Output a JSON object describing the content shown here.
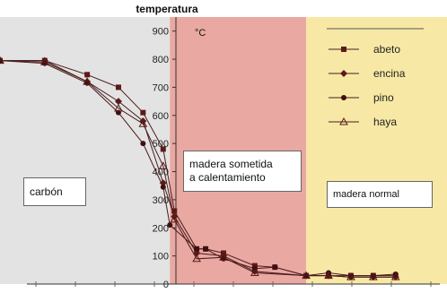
{
  "chart_data": {
    "type": "line",
    "title": "temperatura",
    "ylabel": "temperatura",
    "unit": "°C",
    "ylim": [
      0,
      950
    ],
    "yticks": [
      0,
      100,
      200,
      300,
      400,
      500,
      600,
      700,
      800,
      900
    ],
    "xlim": [
      0,
      20
    ],
    "legend_position": "top-right",
    "grid": false,
    "zones": [
      {
        "label": "carbón",
        "x_start": 0,
        "x_end": 7.6,
        "color": "#e3e3e3"
      },
      {
        "label": "madera sometida a calentamiento",
        "x_start": 7.6,
        "x_end": 13.7,
        "color": "#e9a8a1"
      },
      {
        "label": "madera normal",
        "x_start": 13.7,
        "x_end": 20,
        "color": "#f7e9a5"
      }
    ],
    "zone_labels": {
      "carbon": "carbón",
      "heated_line1": "madera sometida",
      "heated_line2": "a calentamiento",
      "normal": "madera normal"
    },
    "series": [
      {
        "name": "abeto",
        "marker": "square",
        "x": [
          0,
          2,
          3.9,
          5.3,
          6.4,
          7.3,
          7.8,
          8.8,
          9.2,
          10,
          11.4,
          12.3,
          13.7,
          14.7,
          15.7,
          16.7,
          17.7
        ],
        "y": [
          795,
          795,
          745,
          700,
          610,
          480,
          260,
          125,
          125,
          110,
          65,
          60,
          30,
          30,
          30,
          30,
          30
        ]
      },
      {
        "name": "encina",
        "marker": "diamond",
        "x": [
          0,
          2,
          3.9,
          5.3,
          6.4,
          7.3,
          7.8,
          8.8,
          10,
          11.4,
          13.7,
          14.7,
          15.7,
          16.7,
          17.7
        ],
        "y": [
          795,
          795,
          720,
          650,
          580,
          360,
          240,
          110,
          100,
          45,
          30,
          30,
          25,
          25,
          25
        ]
      },
      {
        "name": "pino",
        "marker": "circle",
        "x": [
          0,
          2,
          3.9,
          5.3,
          6.4,
          7.3,
          7.6,
          8.8,
          9.2,
          10,
          11.4,
          12.3,
          13.7,
          14.7,
          15.7,
          16.7,
          17.7
        ],
        "y": [
          795,
          785,
          715,
          610,
          500,
          345,
          210,
          125,
          125,
          90,
          55,
          60,
          30,
          40,
          30,
          30,
          35
        ]
      },
      {
        "name": "haya",
        "marker": "triangle",
        "x": [
          0,
          2,
          3.9,
          5.3,
          6.4,
          7.3,
          7.8,
          8.8,
          10,
          11.4,
          13.7,
          14.7,
          15.7,
          16.7,
          17.7
        ],
        "y": [
          795,
          790,
          720,
          625,
          570,
          420,
          230,
          90,
          95,
          40,
          30,
          30,
          25,
          25,
          25
        ]
      }
    ]
  }
}
